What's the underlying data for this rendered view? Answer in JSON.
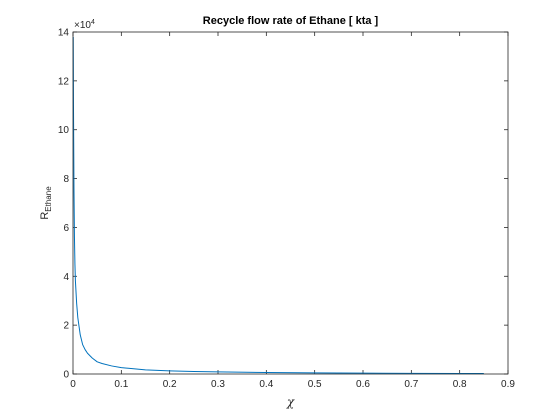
{
  "chart_data": {
    "type": "line",
    "title": "Recycle flow rate of Ethane [ kta ]",
    "xlabel": "χ",
    "ylabel_main": "R",
    "ylabel_sub": "Ethane",
    "y_exponent_base": "×10",
    "y_exponent_power": "4",
    "xlim": [
      0,
      0.9
    ],
    "ylim": [
      0,
      14
    ],
    "x_ticks": [
      0,
      0.1,
      0.2,
      0.3,
      0.4,
      0.5,
      0.6,
      0.7,
      0.8,
      0.9
    ],
    "x_tick_labels": [
      "0",
      "0.1",
      "0.2",
      "0.3",
      "0.4",
      "0.5",
      "0.6",
      "0.7",
      "0.8",
      "0.9"
    ],
    "y_ticks": [
      0,
      2,
      4,
      6,
      8,
      10,
      12,
      14
    ],
    "y_tick_labels": [
      "0",
      "2",
      "4",
      "6",
      "8",
      "10",
      "12",
      "14"
    ],
    "grid": false,
    "series": [
      {
        "color": "#0072BD",
        "x": [
          0.0005,
          0.001,
          0.002,
          0.003,
          0.004,
          0.005,
          0.0075,
          0.01,
          0.015,
          0.02,
          0.025,
          0.03,
          0.04,
          0.05,
          0.06,
          0.08,
          0.1,
          0.15,
          0.2,
          0.25,
          0.3,
          0.4,
          0.5,
          0.6,
          0.7,
          0.8,
          0.85
        ],
        "y": [
          13.8,
          11.0,
          7.6,
          5.6,
          4.5,
          3.8,
          2.9,
          2.3,
          1.6,
          1.2,
          1.0,
          0.85,
          0.65,
          0.5,
          0.43,
          0.33,
          0.26,
          0.17,
          0.13,
          0.1,
          0.085,
          0.06,
          0.045,
          0.035,
          0.027,
          0.02,
          0.018
        ]
      }
    ]
  }
}
